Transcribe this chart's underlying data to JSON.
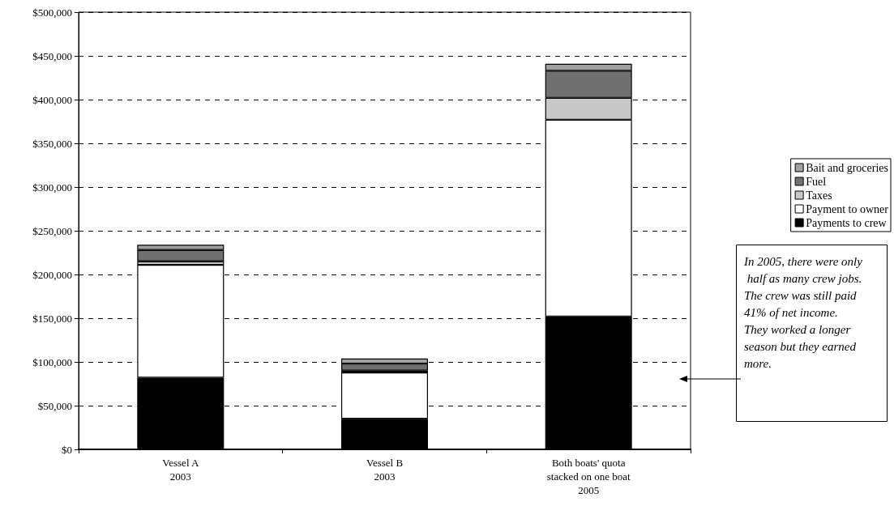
{
  "chart_data": {
    "type": "bar",
    "stacked": true,
    "categories": [
      "Vessel A\n2003",
      "Vessel B\n2003",
      "Both boats' quota\nstacked on one boat\n2005"
    ],
    "series": [
      {
        "name": "Payments to crew",
        "color": "#000000",
        "values": [
          82000,
          35000,
          152000
        ]
      },
      {
        "name": "Payment to owner",
        "color": "#ffffff",
        "values": [
          129000,
          53000,
          225000
        ]
      },
      {
        "name": "Taxes",
        "color": "#c8c8c8",
        "values": [
          4000,
          2000,
          25000
        ]
      },
      {
        "name": "Fuel",
        "color": "#707070",
        "values": [
          13000,
          8000,
          31000
        ]
      },
      {
        "name": "Bait and groceries",
        "color": "#a0a0a0",
        "values": [
          6000,
          6000,
          8000
        ]
      }
    ],
    "ylim": [
      0,
      500000
    ],
    "yticks": [
      {
        "value": 0,
        "label": "$0"
      },
      {
        "value": 50000,
        "label": "$50,000"
      },
      {
        "value": 100000,
        "label": "$100,000"
      },
      {
        "value": 150000,
        "label": "$150,000"
      },
      {
        "value": 200000,
        "label": "$200,000"
      },
      {
        "value": 250000,
        "label": "$250,000"
      },
      {
        "value": 300000,
        "label": "$300,000"
      },
      {
        "value": 350000,
        "label": "$350,000"
      },
      {
        "value": 400000,
        "label": "$400,000"
      },
      {
        "value": 450000,
        "label": "$450,000"
      },
      {
        "value": 500000,
        "label": "$500,000"
      }
    ],
    "grid": "y",
    "legend": "right",
    "annotations": [
      "In 2005, there were only half as many crew jobs. The crew was still paid 41% of net income.  They worked a longer season but they earned more."
    ]
  }
}
